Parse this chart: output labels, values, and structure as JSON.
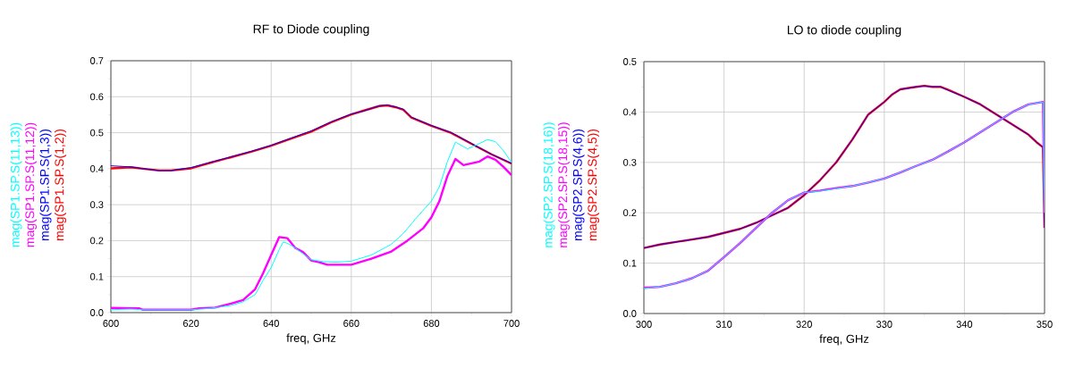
{
  "chart_data": [
    {
      "type": "line",
      "title": "RF to Diode coupling",
      "xlabel": "freq, GHz",
      "xlim": [
        600,
        700
      ],
      "ylim": [
        0,
        0.7
      ],
      "xticks": [
        600,
        620,
        640,
        660,
        680,
        700
      ],
      "yticks": [
        {
          "value": 0,
          "label": "0.0"
        },
        0.1,
        0.2,
        0.3,
        0.4,
        0.5,
        0.6,
        0.7
      ],
      "grid": true,
      "legend": "left",
      "marker": "none",
      "line_style": "solid",
      "series": [
        {
          "name": "mag(SP1.SP.S(11,13))",
          "color": "#00ffff",
          "x": [
            600,
            605,
            608,
            620,
            625,
            630,
            633,
            636,
            638,
            640,
            642,
            643,
            644,
            646,
            648,
            650,
            653,
            656,
            660,
            665,
            670,
            673,
            676,
            680,
            682,
            684,
            686,
            689,
            692,
            694,
            696,
            698,
            700
          ],
          "values": [
            0.008,
            0.01,
            0.008,
            0.008,
            0.012,
            0.02,
            0.03,
            0.05,
            0.09,
            0.125,
            0.175,
            0.196,
            0.193,
            0.18,
            0.163,
            0.147,
            0.142,
            0.14,
            0.143,
            0.16,
            0.19,
            0.22,
            0.26,
            0.31,
            0.35,
            0.42,
            0.474,
            0.455,
            0.47,
            0.481,
            0.475,
            0.45,
            0.417
          ]
        },
        {
          "name": "mag(SP1.SP.S(11,12))",
          "color": "#ff00ff",
          "x": [
            600,
            607,
            608,
            620,
            622,
            626,
            630,
            633,
            636,
            638,
            640,
            642,
            644,
            646,
            648,
            650,
            652,
            654,
            660,
            665,
            670,
            674,
            678,
            680,
            682,
            684,
            686,
            688,
            692,
            694,
            696,
            698,
            700
          ],
          "values": [
            0.013,
            0.012,
            0.008,
            0.008,
            0.012,
            0.014,
            0.025,
            0.035,
            0.065,
            0.11,
            0.16,
            0.21,
            0.207,
            0.18,
            0.168,
            0.145,
            0.14,
            0.133,
            0.133,
            0.15,
            0.17,
            0.2,
            0.235,
            0.265,
            0.31,
            0.38,
            0.427,
            0.41,
            0.42,
            0.434,
            0.425,
            0.405,
            0.382
          ]
        },
        {
          "name": "mag(SP1.SP.S(1,3))",
          "color": "#0000ff",
          "x": [
            600,
            605,
            608,
            612,
            615,
            620,
            625,
            630,
            635,
            640,
            645,
            650,
            655,
            660,
            663,
            667,
            669,
            671,
            673,
            675,
            680,
            685,
            690,
            695,
            700
          ],
          "values": [
            0.408,
            0.405,
            0.4,
            0.395,
            0.395,
            0.403,
            0.418,
            0.433,
            0.448,
            0.465,
            0.485,
            0.505,
            0.53,
            0.552,
            0.56,
            0.575,
            0.577,
            0.572,
            0.565,
            0.543,
            0.52,
            0.5,
            0.47,
            0.44,
            0.415
          ]
        },
        {
          "name": "mag(SP1.SP.S(1,2))",
          "color": "#ff0000",
          "x": [
            600,
            605,
            608,
            612,
            615,
            620,
            625,
            630,
            635,
            640,
            645,
            650,
            655,
            660,
            663,
            667,
            669,
            671,
            673,
            675,
            680,
            685,
            690,
            695,
            700
          ],
          "values": [
            0.401,
            0.404,
            0.4,
            0.395,
            0.395,
            0.401,
            0.417,
            0.432,
            0.447,
            0.464,
            0.484,
            0.503,
            0.529,
            0.551,
            0.561,
            0.574,
            0.576,
            0.571,
            0.564,
            0.542,
            0.519,
            0.499,
            0.469,
            0.44,
            0.414
          ]
        }
      ]
    },
    {
      "type": "line",
      "title": "LO to diode coupling",
      "xlabel": "freq, GHz",
      "xlim": [
        300,
        350
      ],
      "ylim": [
        0,
        0.5
      ],
      "xticks": [
        300,
        310,
        320,
        330,
        340,
        350
      ],
      "yticks": [
        {
          "value": 0,
          "label": "0.0"
        },
        0.1,
        0.2,
        0.3,
        0.4,
        0.5
      ],
      "grid": true,
      "legend": "left",
      "marker": "none",
      "line_style": "solid",
      "series": [
        {
          "name": "mag(SP2.SP.S(18,16))",
          "color": "#00ffff",
          "x": [
            300,
            302,
            304,
            306,
            308,
            310,
            312,
            314,
            316,
            318,
            320,
            322,
            324,
            326,
            328,
            330,
            332,
            334,
            336,
            338,
            340,
            342,
            344,
            346,
            348,
            349.8,
            350
          ],
          "values": [
            0.05,
            0.053,
            0.06,
            0.07,
            0.085,
            0.112,
            0.14,
            0.17,
            0.2,
            0.225,
            0.24,
            0.243,
            0.248,
            0.253,
            0.26,
            0.268,
            0.28,
            0.293,
            0.305,
            0.322,
            0.34,
            0.36,
            0.38,
            0.4,
            0.415,
            0.42,
            0.2
          ]
        },
        {
          "name": "mag(SP2.SP.S(18,15))",
          "color": "#ff00ff",
          "x": [
            300,
            302,
            304,
            306,
            308,
            310,
            312,
            314,
            316,
            318,
            320,
            322,
            324,
            326,
            328,
            330,
            332,
            334,
            336,
            338,
            340,
            342,
            344,
            346,
            348,
            349.8,
            350
          ],
          "values": [
            0.051,
            0.053,
            0.06,
            0.07,
            0.085,
            0.112,
            0.14,
            0.17,
            0.2,
            0.225,
            0.24,
            0.244,
            0.249,
            0.253,
            0.26,
            0.268,
            0.28,
            0.293,
            0.305,
            0.322,
            0.34,
            0.36,
            0.38,
            0.4,
            0.415,
            0.42,
            0.2
          ]
        },
        {
          "name": "mag(SP2.SP.S(4,6))",
          "color": "#0000ff",
          "x": [
            300,
            302,
            304,
            306,
            308,
            310,
            312,
            314,
            316,
            318,
            320,
            322,
            324,
            326,
            327,
            328,
            330,
            331,
            332,
            334,
            335,
            336,
            337,
            338,
            340,
            342,
            344,
            346,
            348,
            349,
            349.8,
            350
          ],
          "values": [
            0.13,
            0.137,
            0.142,
            0.147,
            0.152,
            0.16,
            0.168,
            0.18,
            0.195,
            0.21,
            0.235,
            0.265,
            0.3,
            0.345,
            0.37,
            0.395,
            0.42,
            0.435,
            0.445,
            0.45,
            0.452,
            0.45,
            0.45,
            0.443,
            0.43,
            0.415,
            0.395,
            0.375,
            0.355,
            0.34,
            0.33,
            0.17
          ]
        },
        {
          "name": "mag(SP2.SP.S(4,5))",
          "color": "#ff0000",
          "x": [
            300,
            302,
            304,
            306,
            308,
            310,
            312,
            314,
            316,
            318,
            320,
            322,
            324,
            326,
            327,
            328,
            330,
            331,
            332,
            334,
            335,
            336,
            337,
            338,
            340,
            342,
            344,
            346,
            348,
            349,
            349.8,
            350
          ],
          "values": [
            0.13,
            0.137,
            0.142,
            0.147,
            0.152,
            0.16,
            0.168,
            0.18,
            0.195,
            0.21,
            0.235,
            0.265,
            0.3,
            0.345,
            0.37,
            0.395,
            0.42,
            0.435,
            0.445,
            0.45,
            0.452,
            0.45,
            0.45,
            0.444,
            0.43,
            0.415,
            0.395,
            0.375,
            0.355,
            0.34,
            0.33,
            0.17
          ]
        }
      ]
    }
  ]
}
